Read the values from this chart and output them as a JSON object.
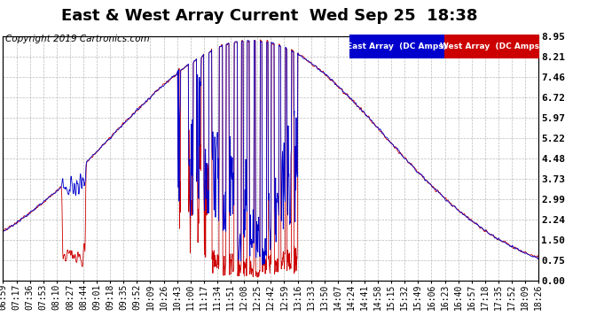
{
  "title": "East & West Array Current  Wed Sep 25  18:38",
  "copyright": "Copyright 2019 Cartronics.com",
  "ylabel_east": "East Array  (DC Amps)",
  "ylabel_west": "West Array  (DC Amps)",
  "yticks": [
    0.0,
    0.75,
    1.5,
    2.24,
    2.99,
    3.73,
    4.48,
    5.22,
    5.97,
    6.72,
    7.46,
    8.21,
    8.95
  ],
  "ylim": [
    0.0,
    8.95
  ],
  "xtick_labels": [
    "06:59",
    "07:17",
    "07:36",
    "07:53",
    "08:10",
    "08:27",
    "08:44",
    "09:01",
    "09:18",
    "09:35",
    "09:52",
    "10:09",
    "10:26",
    "10:43",
    "11:00",
    "11:17",
    "11:34",
    "11:51",
    "12:08",
    "12:25",
    "12:42",
    "12:59",
    "13:16",
    "13:33",
    "13:50",
    "14:07",
    "14:24",
    "14:41",
    "14:58",
    "15:15",
    "15:32",
    "15:49",
    "16:06",
    "16:23",
    "16:40",
    "16:57",
    "17:18",
    "17:35",
    "17:52",
    "18:09",
    "18:26"
  ],
  "background_color": "#ffffff",
  "plot_bg_color": "#ffffff",
  "grid_color": "#aaaaaa",
  "east_color": "#0000cc",
  "west_color": "#cc0000",
  "title_fontsize": 13,
  "copyright_fontsize": 7.5,
  "tick_fontsize": 7,
  "legend_east_bg": "#0000cc",
  "legend_west_bg": "#cc0000"
}
